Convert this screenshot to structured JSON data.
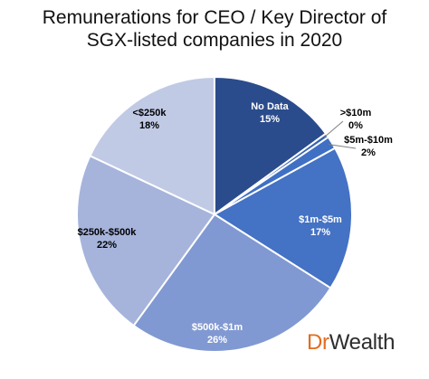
{
  "chart_data": {
    "type": "pie",
    "title_lines": [
      "Remunerations for CEO / Key Director of",
      "SGX-listed companies in 2020"
    ],
    "slices": [
      {
        "label": "No Data",
        "value": 15,
        "value_label": "15%",
        "color": "#2b4c8c",
        "label_color": "#ffffff"
      },
      {
        "label": ">$10m",
        "value": 0.5,
        "value_label": "0%",
        "color": "#3763b1",
        "label_color": "#000000"
      },
      {
        "label": "$5m-$10m",
        "value": 1.5,
        "value_label": "2%",
        "color": "#3f70c4",
        "label_color": "#000000"
      },
      {
        "label": "$1m-$5m",
        "value": 17,
        "value_label": "17%",
        "color": "#4472c4",
        "label_color": "#ffffff"
      },
      {
        "label": "$500k-$1m",
        "value": 26,
        "value_label": "26%",
        "color": "#8199d2",
        "label_color": "#ffffff"
      },
      {
        "label": "$250k-$500k",
        "value": 22,
        "value_label": "22%",
        "color": "#a6b4dc",
        "label_color": "#000000"
      },
      {
        "label": "<$250k",
        "value": 18,
        "value_label": "18%",
        "color": "#c0cae5",
        "label_color": "#000000"
      }
    ],
    "legend": "none"
  },
  "brand": {
    "part1": "Dr",
    "part2": "Wealth"
  }
}
